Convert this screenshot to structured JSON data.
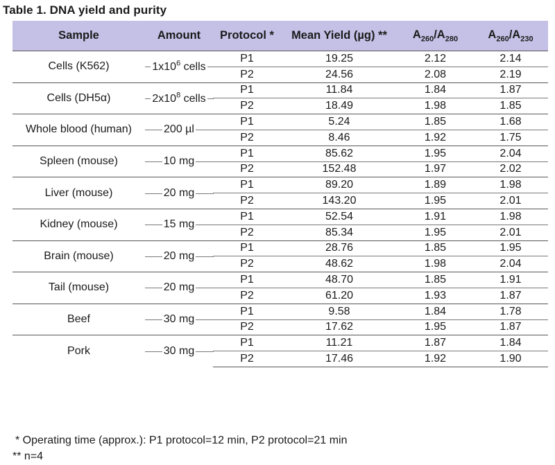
{
  "title": "Table 1. DNA yield and purity",
  "headers": {
    "sample": "Sample",
    "amount": "Amount",
    "protocol": "Protocol *",
    "yield": "Mean Yield (µg) **",
    "r1_a": "A",
    "r1_s1": "260",
    "r1_slash": "/A",
    "r1_s2": "280",
    "r2_a": "A",
    "r2_s1": "260",
    "r2_slash": "/A",
    "r2_s2": "230"
  },
  "rows": [
    {
      "sample": "Cells (K562)",
      "amount_base": "1x10",
      "amount_exp": "6",
      "amount_unit": " cells",
      "p1": {
        "protocol": "P1",
        "yield": "19.25",
        "r1": "2.12",
        "r2": "2.14"
      },
      "p2": {
        "protocol": "P2",
        "yield": "24.56",
        "r1": "2.08",
        "r2": "2.19"
      }
    },
    {
      "sample": "Cells (DH5α)",
      "amount_base": "2x10",
      "amount_exp": "8",
      "amount_unit": " cells",
      "p1": {
        "protocol": "P1",
        "yield": "11.84",
        "r1": "1.84",
        "r2": "1.87"
      },
      "p2": {
        "protocol": "P2",
        "yield": "18.49",
        "r1": "1.98",
        "r2": "1.85"
      }
    },
    {
      "sample": "Whole blood (human)",
      "amount": "200 µl",
      "p1": {
        "protocol": "P1",
        "yield": "5.24",
        "r1": "1.85",
        "r2": "1.68"
      },
      "p2": {
        "protocol": "P2",
        "yield": "8.46",
        "r1": "1.92",
        "r2": "1.75"
      }
    },
    {
      "sample": "Spleen (mouse)",
      "amount": "10 mg",
      "p1": {
        "protocol": "P1",
        "yield": "85.62",
        "r1": "1.95",
        "r2": "2.04"
      },
      "p2": {
        "protocol": "P2",
        "yield": "152.48",
        "r1": "1.97",
        "r2": "2.02"
      }
    },
    {
      "sample": "Liver (mouse)",
      "amount": "20 mg",
      "p1": {
        "protocol": "P1",
        "yield": "89.20",
        "r1": "1.89",
        "r2": "1.98"
      },
      "p2": {
        "protocol": "P2",
        "yield": "143.20",
        "r1": "1.95",
        "r2": "2.01"
      }
    },
    {
      "sample": "Kidney (mouse)",
      "amount": "15 mg",
      "p1": {
        "protocol": "P1",
        "yield": "52.54",
        "r1": "1.91",
        "r2": "1.98"
      },
      "p2": {
        "protocol": "P2",
        "yield": "85.34",
        "r1": "1.95",
        "r2": "2.01"
      }
    },
    {
      "sample": "Brain (mouse)",
      "amount": "20 mg",
      "p1": {
        "protocol": "P1",
        "yield": "28.76",
        "r1": "1.85",
        "r2": "1.95"
      },
      "p2": {
        "protocol": "P2",
        "yield": "48.62",
        "r1": "1.98",
        "r2": "2.04"
      }
    },
    {
      "sample": "Tail (mouse)",
      "amount": "20 mg",
      "p1": {
        "protocol": "P1",
        "yield": "48.70",
        "r1": "1.85",
        "r2": "1.91"
      },
      "p2": {
        "protocol": "P2",
        "yield": "61.20",
        "r1": "1.93",
        "r2": "1.87"
      }
    },
    {
      "sample": "Beef",
      "amount": "30 mg",
      "p1": {
        "protocol": "P1",
        "yield": "9.58",
        "r1": "1.84",
        "r2": "1.78"
      },
      "p2": {
        "protocol": "P2",
        "yield": "17.62",
        "r1": "1.95",
        "r2": "1.87"
      }
    },
    {
      "sample": "Pork",
      "amount": "30 mg",
      "p1": {
        "protocol": "P1",
        "yield": "11.21",
        "r1": "1.87",
        "r2": "1.84"
      },
      "p2": {
        "protocol": "P2",
        "yield": "17.46",
        "r1": "1.92",
        "r2": "1.90"
      }
    }
  ],
  "footnotes": {
    "note1": "* Operating time (approx.): P1 protocol=12 min, P2 protocol=21 min",
    "note2": "** n=4"
  }
}
